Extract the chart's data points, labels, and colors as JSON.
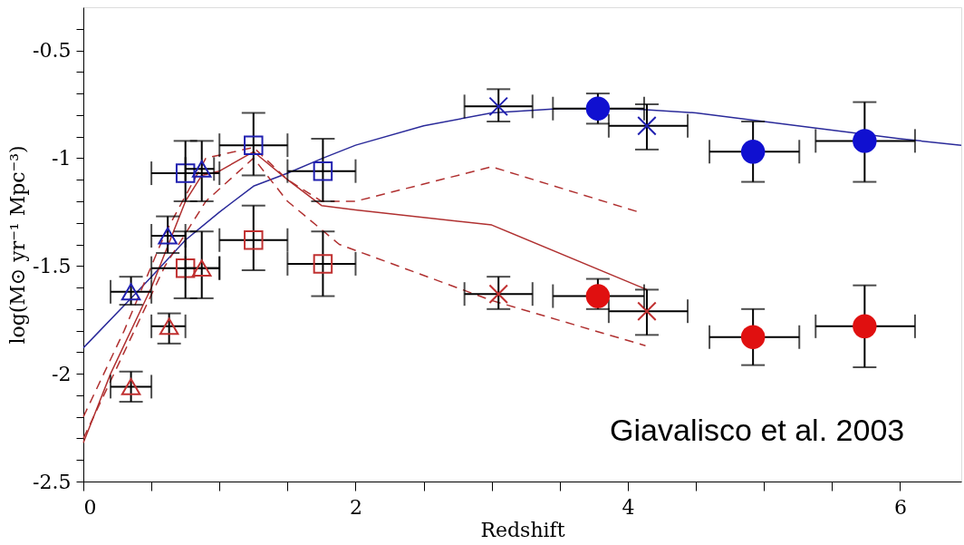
{
  "chart_data": {
    "type": "scatter",
    "xlabel": "Redshift",
    "ylabel": "log(M⊙ yr⁻¹ Mpc⁻³)",
    "annotations": [
      "Giavalisco et al. 2003"
    ],
    "xlim": [
      0,
      6.45
    ],
    "ylim": [
      -2.5,
      -0.3
    ],
    "xticks": [
      0,
      {
        "value": 0.5,
        "label": null
      },
      {
        "value": 1,
        "label": null
      },
      {
        "value": 1.5,
        "label": null
      },
      2,
      {
        "value": 2.5,
        "label": null
      },
      {
        "value": 3,
        "label": null
      },
      {
        "value": 3.5,
        "label": null
      },
      4,
      {
        "value": 4.5,
        "label": null
      },
      {
        "value": 5,
        "label": null
      },
      {
        "value": 5.5,
        "label": null
      },
      6
    ],
    "yticks": [
      -2.5,
      {
        "value": -2.4,
        "label": null
      },
      {
        "value": -2.3,
        "label": null
      },
      {
        "value": -2.2,
        "label": null
      },
      {
        "value": -2.1,
        "label": null
      },
      -2,
      {
        "value": -1.9,
        "label": null
      },
      {
        "value": -1.8,
        "label": null
      },
      {
        "value": -1.7,
        "label": null
      },
      {
        "value": -1.6,
        "label": null
      },
      -1.5,
      {
        "value": -1.4,
        "label": null
      },
      {
        "value": -1.3,
        "label": null
      },
      {
        "value": -1.2,
        "label": null
      },
      {
        "value": -1.1,
        "label": null
      },
      -1,
      {
        "value": -0.9,
        "label": null
      },
      {
        "value": -0.8,
        "label": null
      },
      {
        "value": -0.7,
        "label": null
      },
      {
        "value": -0.6,
        "label": null
      },
      -0.5,
      {
        "value": -0.4,
        "label": null
      }
    ],
    "grid": false,
    "series": [
      {
        "type": "line",
        "color": "#2a2a9a",
        "line_style": "solid",
        "x": [
          0,
          0.35,
          0.5,
          0.75,
          1.0,
          1.25,
          1.5,
          1.76,
          2,
          2.5,
          3,
          3.5,
          4,
          4.5,
          5,
          5.5,
          6,
          6.45
        ],
        "values": [
          -1.88,
          -1.65,
          -1.55,
          -1.38,
          -1.25,
          -1.13,
          -1.07,
          -1.0,
          -0.94,
          -0.85,
          -0.79,
          -0.77,
          -0.77,
          -0.79,
          -0.83,
          -0.87,
          -0.91,
          -0.94
        ]
      },
      {
        "type": "line",
        "color": "#b03030",
        "line_style": "solid",
        "x": [
          0,
          0.2,
          0.5,
          0.75,
          0.87,
          1.0,
          1.25,
          1.5,
          1.75,
          2.0,
          3.0,
          4.14
        ],
        "values": [
          -2.32,
          -2.0,
          -1.6,
          -1.2,
          -1.08,
          -1.06,
          -0.97,
          -1.1,
          -1.22,
          -1.24,
          -1.31,
          -1.61
        ]
      },
      {
        "type": "line",
        "color": "#b03030",
        "line_style": "dashed",
        "x": [
          0,
          0.3,
          0.6,
          0.9,
          1.25,
          1.5,
          1.75,
          2.0,
          3.0,
          4.08
        ],
        "values": [
          -2.2,
          -1.8,
          -1.35,
          -1.0,
          -0.95,
          -1.1,
          -1.2,
          -1.2,
          -1.04,
          -1.25
        ]
      },
      {
        "type": "line",
        "color": "#b03030",
        "line_style": "dashed",
        "x": [
          0,
          0.3,
          0.6,
          0.9,
          1.25,
          1.5,
          1.88,
          3.0,
          4.13
        ],
        "values": [
          -2.3,
          -1.9,
          -1.5,
          -1.2,
          -1.0,
          -1.2,
          -1.4,
          -1.66,
          -1.87
        ]
      },
      {
        "marker": "square",
        "color": "#2020b0",
        "x": [
          0.75,
          1.25,
          1.76
        ],
        "values": [
          -1.07,
          -0.94,
          -1.06
        ],
        "errors": [
          [
            -1.2,
            -0.92
          ],
          [
            -1.08,
            -0.79
          ],
          [
            -1.2,
            -0.91
          ]
        ],
        "xerrors": [
          [
            0.5,
            1.0
          ],
          [
            1.0,
            1.5
          ],
          [
            1.5,
            2.0
          ]
        ]
      },
      {
        "marker": "square",
        "color": "#c03030",
        "x": [
          0.75,
          1.25,
          1.76
        ],
        "values": [
          -1.51,
          -1.38,
          -1.49
        ],
        "errors": [
          [
            -1.65,
            -1.34
          ],
          [
            -1.52,
            -1.22
          ],
          [
            -1.64,
            -1.34
          ]
        ],
        "xerrors": [
          [
            0.5,
            1.0
          ],
          [
            1.0,
            1.5
          ],
          [
            1.5,
            2.0
          ]
        ]
      },
      {
        "marker": "triangle",
        "color": "#2020b0",
        "x": [
          0.35,
          0.62,
          0.87
        ],
        "values": [
          -1.62,
          -1.36,
          -1.05
        ],
        "errors": [
          [
            -1.68,
            -1.55
          ],
          [
            -1.44,
            -1.27
          ],
          [
            -1.2,
            -0.92
          ]
        ],
        "xerrors": [
          [
            0.2,
            0.5
          ],
          [
            0.5,
            0.75
          ],
          [
            0.75,
            0.96
          ]
        ]
      },
      {
        "marker": "triangle",
        "color": "#c03030",
        "x": [
          0.35,
          0.63,
          0.87
        ],
        "values": [
          -2.06,
          -1.78,
          -1.51
        ],
        "errors": [
          [
            -2.13,
            -1.99
          ],
          [
            -1.86,
            -1.72
          ],
          [
            -1.65,
            -1.34
          ]
        ],
        "xerrors": [
          [
            0.2,
            0.5
          ],
          [
            0.5,
            0.75
          ],
          [
            0.75,
            1.0
          ]
        ]
      },
      {
        "marker": "cross",
        "color": "#2020b0",
        "x": [
          3.05,
          4.14
        ],
        "values": [
          -0.76,
          -0.85
        ],
        "errors": [
          [
            -0.83,
            -0.68
          ],
          [
            -0.96,
            -0.75
          ]
        ],
        "xerrors": [
          [
            2.8,
            3.3
          ],
          [
            3.86,
            4.44
          ]
        ]
      },
      {
        "marker": "cross",
        "color": "#c03030",
        "x": [
          3.05,
          4.14
        ],
        "values": [
          -1.63,
          -1.71
        ],
        "errors": [
          [
            -1.7,
            -1.55
          ],
          [
            -1.82,
            -1.61
          ]
        ],
        "xerrors": [
          [
            2.8,
            3.3
          ],
          [
            3.86,
            4.44
          ]
        ]
      },
      {
        "marker": "circle",
        "color": "#1010d0",
        "x": [
          3.78,
          4.92,
          5.74
        ],
        "values": [
          -0.77,
          -0.97,
          -0.92
        ],
        "errors": [
          [
            -0.84,
            -0.7
          ],
          [
            -1.11,
            -0.83
          ],
          [
            -1.11,
            -0.74
          ]
        ],
        "xerrors": [
          [
            3.45,
            4.12
          ],
          [
            4.6,
            5.26
          ],
          [
            5.38,
            6.11
          ]
        ]
      },
      {
        "marker": "circle",
        "color": "#e01010",
        "x": [
          3.78,
          4.92,
          5.74
        ],
        "values": [
          -1.64,
          -1.83,
          -1.78
        ],
        "errors": [
          [
            -1.7,
            -1.56
          ],
          [
            -1.96,
            -1.7
          ],
          [
            -1.97,
            -1.59
          ]
        ],
        "xerrors": [
          [
            3.45,
            4.12
          ],
          [
            4.6,
            5.26
          ],
          [
            5.38,
            6.11
          ]
        ]
      }
    ]
  }
}
